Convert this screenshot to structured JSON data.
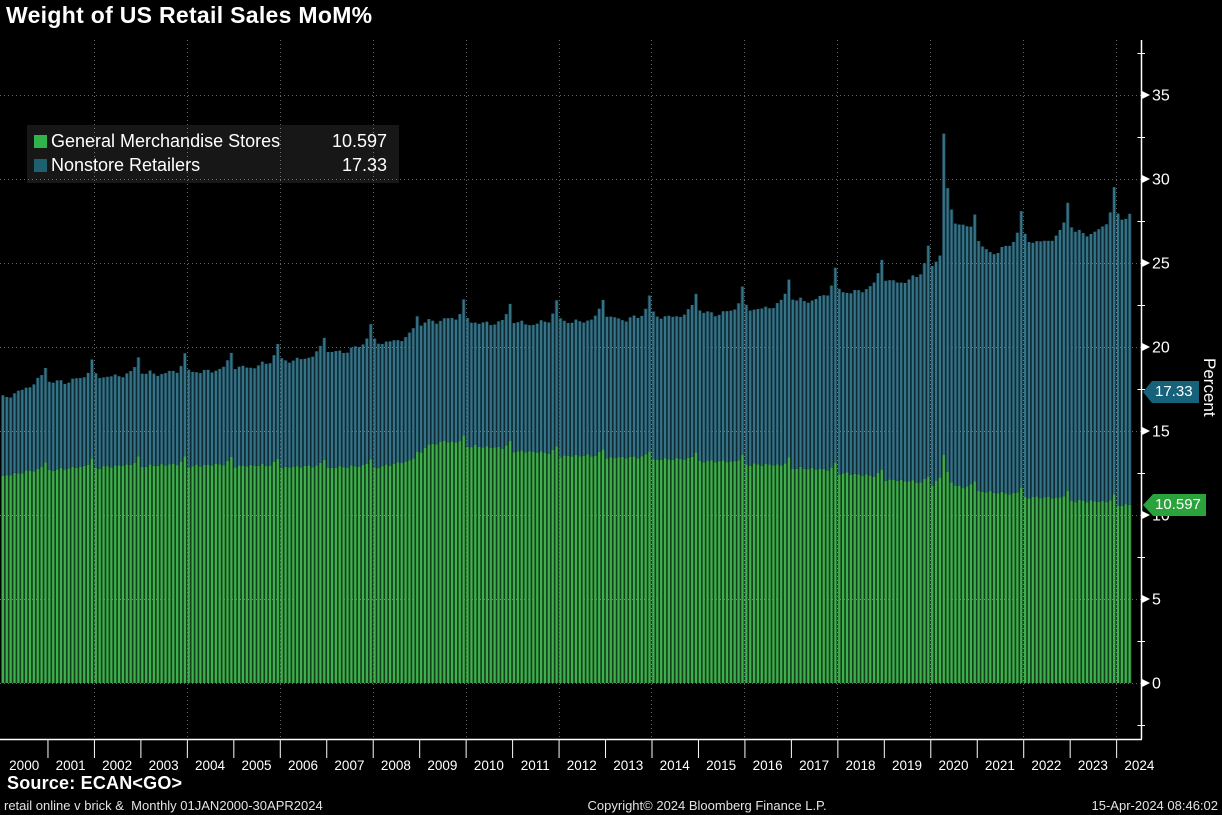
{
  "title": "Weight of US Retail Sales MoM%",
  "legend": {
    "items": [
      {
        "label": "General Merchandise Stores",
        "value": "10.597",
        "color": "#2fb34a"
      },
      {
        "label": "Nonstore Retailers",
        "value": "17.33",
        "color": "#1e6070"
      }
    ]
  },
  "y_axis": {
    "title": "Percent",
    "ticks": [
      0,
      5,
      10,
      15,
      20,
      25,
      30,
      35
    ],
    "minor_ticks": [
      -2.5,
      2.5,
      7.5,
      12.5,
      17.5,
      22.5,
      27.5,
      32.5,
      37.5
    ],
    "range": [
      -3.3,
      38.3
    ]
  },
  "x_axis": {
    "years": [
      2000,
      2001,
      2002,
      2003,
      2004,
      2005,
      2006,
      2007,
      2008,
      2009,
      2010,
      2011,
      2012,
      2013,
      2014,
      2015,
      2016,
      2017,
      2018,
      2019,
      2020,
      2021,
      2022,
      2023,
      2024
    ],
    "gridline_years": [
      2002,
      2004,
      2006,
      2008,
      2010,
      2012,
      2014,
      2016,
      2018,
      2020,
      2022,
      2024
    ]
  },
  "badges": [
    {
      "series": "Nonstore Retailers",
      "text": "17.33",
      "value": 17.33,
      "bg": "#15627a"
    },
    {
      "series": "General Merchandise Stores",
      "text": "10.597",
      "value": 10.597,
      "bg": "#2ba33c"
    }
  ],
  "footer": {
    "source": "Source: ECAN<GO>",
    "status_left": "retail online v brick &  Monthly 01JAN2000-30APR2024",
    "status_center": "Copyright© 2024 Bloomberg Finance L.P.",
    "status_right": "15-Apr-2024 08:46:02"
  },
  "chart_data": {
    "type": "bar",
    "stacked": true,
    "title": "Weight of US Retail Sales MoM%",
    "ylabel": "Percent",
    "ylim": [
      -3.3,
      38.3
    ],
    "x_start": {
      "year": 2000,
      "month": 1
    },
    "x_end": {
      "year": 2024,
      "month": 4
    },
    "months": 292,
    "frequency": "Monthly",
    "grid": true,
    "legend_position": "top-left",
    "series": [
      {
        "name": "General Merchandise Stores",
        "bar_color": "#3fb04e",
        "area_color": "#15401c",
        "last_value": 10.597,
        "anchors": [
          [
            2000.0,
            12.4
          ],
          [
            2000.5,
            12.6
          ],
          [
            2001.0,
            12.75
          ],
          [
            2002.0,
            12.9
          ],
          [
            2003.0,
            13.0
          ],
          [
            2004.0,
            13.0
          ],
          [
            2005.0,
            13.0
          ],
          [
            2006.0,
            12.92
          ],
          [
            2007.0,
            12.9
          ],
          [
            2008.0,
            12.9
          ],
          [
            2008.75,
            13.2
          ],
          [
            2008.92,
            13.3
          ],
          [
            2009.05,
            14.15
          ],
          [
            2009.5,
            14.4
          ],
          [
            2010.0,
            14.2
          ],
          [
            2011.0,
            13.9
          ],
          [
            2012.0,
            13.6
          ],
          [
            2013.0,
            13.5
          ],
          [
            2014.0,
            13.4
          ],
          [
            2015.0,
            13.3
          ],
          [
            2016.0,
            13.1
          ],
          [
            2017.0,
            12.9
          ],
          [
            2018.0,
            12.6
          ],
          [
            2019.0,
            12.2
          ],
          [
            2020.0,
            11.85
          ],
          [
            2020.17,
            12.35
          ],
          [
            2020.25,
            13.6
          ],
          [
            2020.33,
            12.6
          ],
          [
            2020.42,
            12.0
          ],
          [
            2020.5,
            11.7
          ],
          [
            2020.92,
            11.6
          ],
          [
            2021.0,
            11.5
          ],
          [
            2022.0,
            11.15
          ],
          [
            2023.0,
            10.95
          ],
          [
            2024.0,
            10.7
          ],
          [
            2024.25,
            10.597
          ]
        ],
        "seasonal": [
          -0.12,
          -0.1,
          -0.04,
          -0.04,
          -0.05,
          -0.03,
          0.0,
          0.02,
          0.0,
          0.02,
          0.18,
          0.45
        ]
      },
      {
        "name": "Nonstore Retailers",
        "bar_color": "#357386",
        "area_color": "#0f2a35",
        "last_value": 17.33,
        "anchors": [
          [
            2000.0,
            4.6
          ],
          [
            2000.75,
            5.3
          ],
          [
            2001.0,
            5.2
          ],
          [
            2002.0,
            5.4
          ],
          [
            2003.0,
            5.5
          ],
          [
            2004.0,
            5.6
          ],
          [
            2005.0,
            5.8
          ],
          [
            2006.0,
            6.3
          ],
          [
            2007.0,
            6.8
          ],
          [
            2008.0,
            7.4
          ],
          [
            2008.92,
            7.5
          ],
          [
            2009.05,
            7.4
          ],
          [
            2010.0,
            7.4
          ],
          [
            2011.0,
            7.6
          ],
          [
            2012.0,
            8.0
          ],
          [
            2013.0,
            8.3
          ],
          [
            2014.0,
            8.5
          ],
          [
            2015.0,
            8.8
          ],
          [
            2016.0,
            9.2
          ],
          [
            2017.0,
            9.9
          ],
          [
            2018.0,
            10.7
          ],
          [
            2019.0,
            11.7
          ],
          [
            2020.0,
            12.7
          ],
          [
            2020.17,
            13.4
          ],
          [
            2020.25,
            19.4
          ],
          [
            2020.33,
            17.1
          ],
          [
            2020.42,
            16.5
          ],
          [
            2020.5,
            16.0
          ],
          [
            2020.67,
            15.8
          ],
          [
            2020.83,
            14.9
          ],
          [
            2021.0,
            14.6
          ],
          [
            2021.25,
            14.4
          ],
          [
            2021.5,
            14.8
          ],
          [
            2022.0,
            15.2
          ],
          [
            2022.5,
            15.6
          ],
          [
            2023.0,
            15.95
          ],
          [
            2023.5,
            16.3
          ],
          [
            2024.0,
            16.9
          ],
          [
            2024.25,
            17.33
          ]
        ],
        "seasonal": [
          0.22,
          0.02,
          -0.06,
          -0.12,
          -0.15,
          -0.18,
          -0.18,
          -0.14,
          -0.08,
          0.02,
          0.25,
          0.75
        ],
        "seasonal_scale_ref": 9
      }
    ],
    "texture": {
      "g_noise": 0.06,
      "n_noise": 0.1
    },
    "annotations": [
      {
        "label": "17.33",
        "value": 17.33,
        "type": "last-value-badge"
      },
      {
        "label": "10.597",
        "value": 10.597,
        "type": "last-value-badge"
      }
    ]
  }
}
